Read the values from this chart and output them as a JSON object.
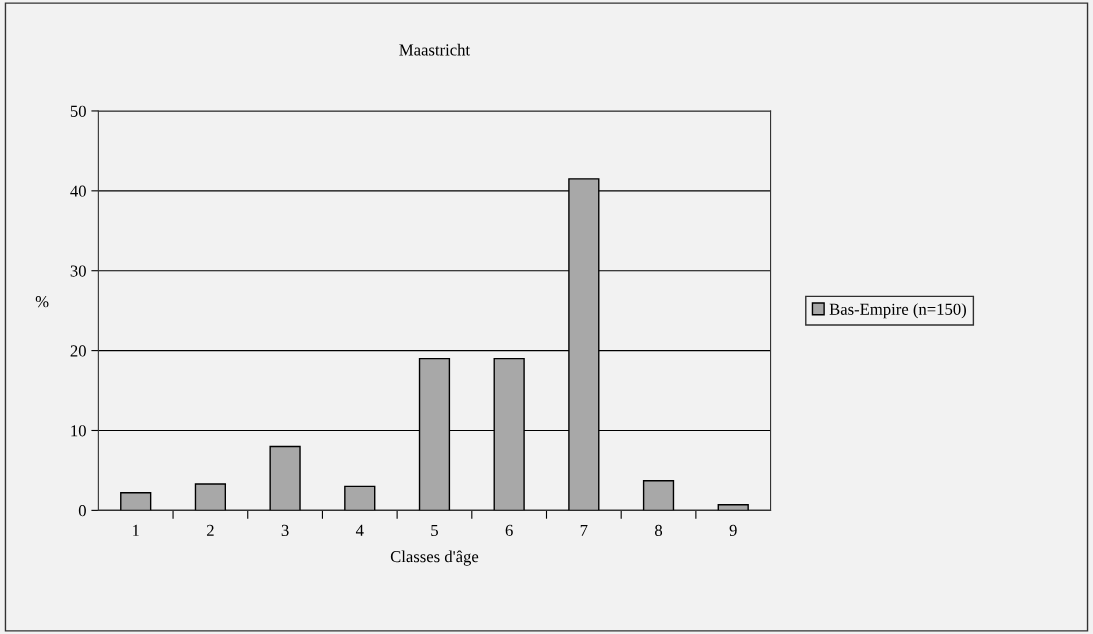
{
  "chart_data": {
    "type": "bar",
    "title": "Maastricht",
    "xlabel": "Classes d'âge",
    "ylabel": "%",
    "categories": [
      "1",
      "2",
      "3",
      "4",
      "5",
      "6",
      "7",
      "8",
      "9"
    ],
    "series": [
      {
        "name": "Bas-Empire (n=150)",
        "color": "#a8a8a8",
        "values": [
          2.2,
          3.3,
          8,
          3,
          19,
          19,
          41.5,
          3.7,
          0.7
        ]
      }
    ],
    "ylim": [
      0,
      50
    ],
    "yticks": [
      0,
      10,
      20,
      30,
      40,
      50
    ],
    "grid": "y",
    "legend": "right"
  }
}
